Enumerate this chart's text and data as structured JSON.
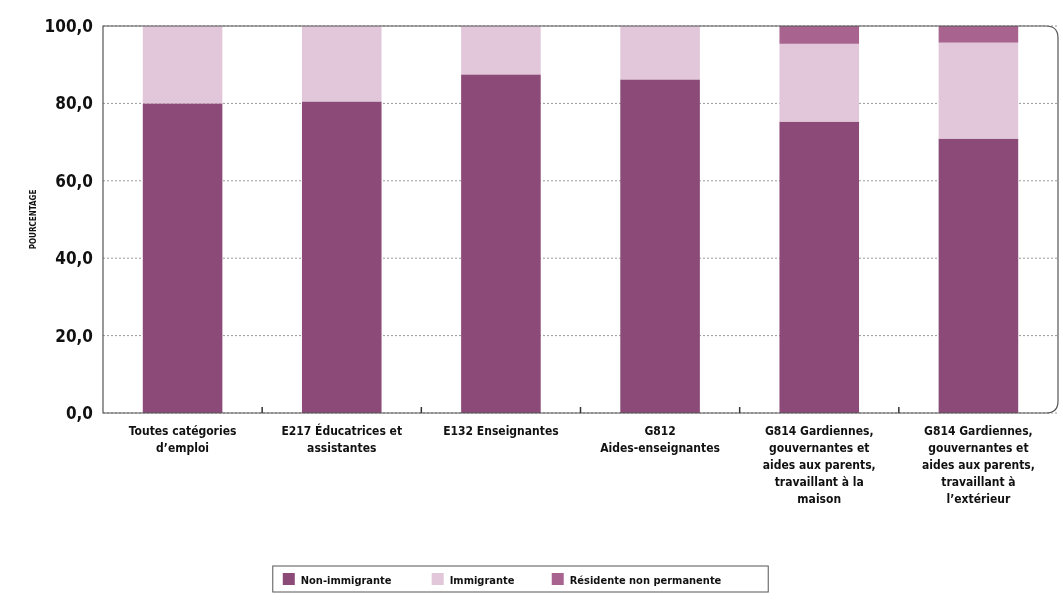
{
  "chart_data": {
    "type": "bar",
    "stacked": true,
    "ylabel": "POURCENTAGE",
    "categories": [
      "Toutes catégories d’emploi",
      "E217 Éducatrices et assistantes",
      "E132 Enseignantes",
      "G812 Aides-enseignantes",
      "G814 Gardiennes, gouvernantes et aides aux parents, travaillant à la maison",
      "G814 Gardiennes, gouvernantes et aides aux parents, travaillant à l’extérieur"
    ],
    "series": [
      {
        "name": "Non-immigrante",
        "color": "#8b4a78",
        "values": [
          80.0,
          80.5,
          87.5,
          86.2,
          75.3,
          70.9
        ]
      },
      {
        "name": "Immigrante",
        "color": "#e2c6da",
        "values": [
          20.0,
          19.5,
          12.5,
          13.8,
          20.1,
          24.8
        ]
      },
      {
        "name": "Résidente non permanente",
        "color": "#a8648f",
        "values": [
          0,
          0,
          0,
          0,
          4.6,
          4.3
        ]
      }
    ],
    "ylim": [
      0,
      100
    ],
    "yticks": [
      {
        "value": 0,
        "label": "0,0"
      },
      {
        "value": 20,
        "label": "20,0"
      },
      {
        "value": 40,
        "label": "40,0"
      },
      {
        "value": 60,
        "label": "60,0"
      },
      {
        "value": 80,
        "label": "80,0"
      },
      {
        "value": 100,
        "label": "100,0"
      }
    ],
    "grid": "y",
    "legend": "bottom"
  }
}
